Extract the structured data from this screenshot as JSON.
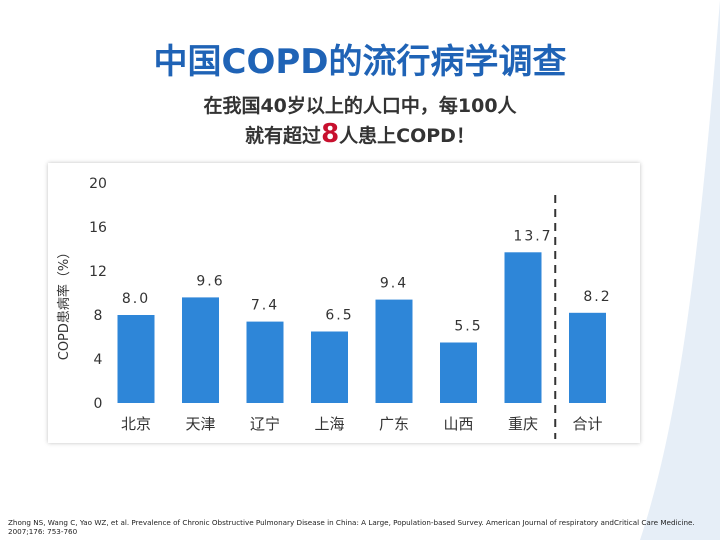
{
  "slide": {
    "title": "中国COPD的流行病学调查",
    "subtitle_line1": "在我国40岁以上的人口中，每100人",
    "subtitle_line2_pre": "就有超过",
    "subtitle_line2_num": "8",
    "subtitle_line2_post": "人患上COPD！",
    "reference": "Zhong NS, Wang C, Yao WZ, et al. Prevalence of Chronic Obstructive Pulmonary Disease in China: A Large, Population-based Survey.  American Journal of respiratory andCritical Care Medicine. 2007;176: 753-760"
  },
  "colors": {
    "bar": "#2e86d8",
    "title": "#1f63b6",
    "axis_text": "#333333",
    "highlight": "#c8102e"
  },
  "chart_data": {
    "type": "bar",
    "title": "",
    "ylabel": "COPD患病率（%）",
    "xlabel": "",
    "ylim": [
      0,
      20
    ],
    "yticks": [
      0,
      4,
      8,
      12,
      16,
      20
    ],
    "categories": [
      "北京",
      "天津",
      "辽宁",
      "上海",
      "广东",
      "山西",
      "重庆",
      "合计"
    ],
    "values": [
      8.0,
      9.6,
      7.4,
      6.5,
      9.4,
      5.5,
      13.7,
      8.2
    ],
    "data_labels": [
      "8.0",
      "9.6",
      "7.4",
      "6.5",
      "9.4",
      "5.5",
      "13.7",
      "8.2"
    ],
    "separator_before": "合计"
  }
}
